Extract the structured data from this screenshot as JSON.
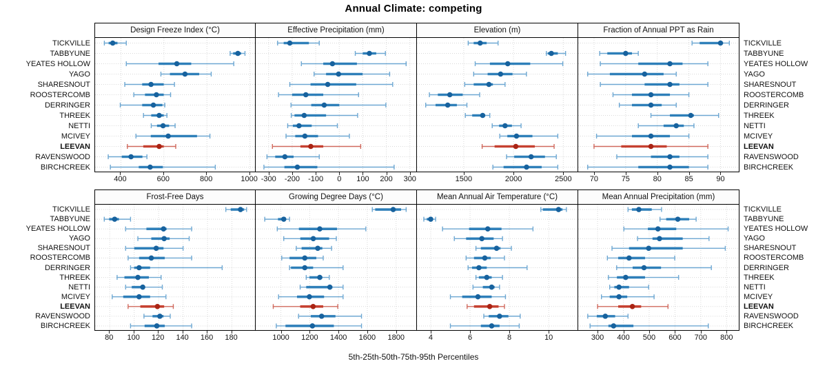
{
  "title": "Annual Climate: competing",
  "caption": "5th-25th-50th-75th-95th Percentiles",
  "highlight": "LEEVAN",
  "locations": [
    "TICKVILLE",
    "TABBYUNE",
    "YEATES HOLLOW",
    "YAGO",
    "SHARESNOUT",
    "ROOSTERCOMB",
    "DERRINGER",
    "THREEK",
    "NETTI",
    "MCIVEY",
    "LEEVAN",
    "RAVENSWOOD",
    "BIRCHCREEK"
  ],
  "colors": {
    "blue_line": "#6da7d2",
    "blue_bar": "#2478b5",
    "blue_dot": "#17629e",
    "red_line": "#d0695d",
    "red_bar": "#c33a28",
    "red_dot": "#aa2414",
    "grid": "#d8d8d8",
    "border": "#000000",
    "strip_bg": "#fcfcfc"
  },
  "chart_data": {
    "type": "dotplot-whisker-trellis",
    "percentiles": [
      5,
      25,
      50,
      75,
      95
    ],
    "layout": "2 rows x 4 columns, shared row categories, gridlines dotted, row labels on both sides",
    "panels": [
      {
        "label": "Design Freeze Index (°C)",
        "ticks": [
          400,
          600,
          800,
          1000
        ],
        "domain": [
          280,
          1030
        ],
        "values": {
          "TICKVILLE": [
            323,
            343,
            362,
            384,
            425
          ],
          "TABBYUNE": [
            908,
            922,
            944,
            959,
            977
          ],
          "YEATES HOLLOW": [
            425,
            575,
            660,
            727,
            925
          ],
          "YAGO": [
            586,
            628,
            698,
            764,
            820
          ],
          "SHARESNOUT": [
            418,
            499,
            540,
            599,
            649
          ],
          "ROOSTERCOMB": [
            460,
            512,
            565,
            599,
            631
          ],
          "DERRINGER": [
            397,
            499,
            551,
            593,
            604
          ],
          "THREEK": [
            505,
            541,
            578,
            599,
            614
          ],
          "NETTI": [
            541,
            568,
            596,
            624,
            652
          ],
          "MCIVEY": [
            470,
            539,
            620,
            754,
            814
          ],
          "LEEVAN": [
            430,
            504,
            578,
            599,
            655
          ],
          "RAVENSWOOD": [
            341,
            404,
            447,
            500,
            521
          ],
          "BIRCHCREEK": [
            351,
            483,
            536,
            595,
            839
          ]
        }
      },
      {
        "label": "Effective Precipitation (mm)",
        "ticks": [
          -300,
          -200,
          -100,
          0,
          100,
          200,
          300
        ],
        "domain": [
          -355,
          330
        ],
        "values": {
          "TICKVILLE": [
            -262,
            -236,
            -210,
            -129,
            -85
          ],
          "TABBYUNE": [
            68,
            100,
            128,
            157,
            196
          ],
          "YEATES HOLLOW": [
            -161,
            -68,
            -29,
            75,
            284
          ],
          "YAGO": [
            -107,
            -56,
            -3,
            99,
            214
          ],
          "SHARESNOUT": [
            -210,
            -122,
            -49,
            72,
            227
          ],
          "ROOSTERCOMB": [
            -258,
            -200,
            -142,
            -68,
            82
          ],
          "DERRINGER": [
            -205,
            -119,
            -64,
            0,
            198
          ],
          "THREEK": [
            -204,
            -190,
            -149,
            -56,
            78
          ],
          "NETTI": [
            -219,
            -197,
            -171,
            -117,
            -8
          ],
          "MCIVEY": [
            -226,
            -187,
            -146,
            -90,
            43
          ],
          "LEEVAN": [
            -284,
            -165,
            -121,
            -68,
            91
          ],
          "RAVENSWOOD": [
            -307,
            -272,
            -231,
            -194,
            -85
          ],
          "BIRCHCREEK": [
            -320,
            -233,
            -178,
            -93,
            233
          ]
        }
      },
      {
        "label": "Elevation (m)",
        "ticks": [
          1500,
          2000,
          2500
        ],
        "domain": [
          1030,
          2650
        ],
        "values": {
          "TICKVILLE": [
            1545,
            1600,
            1665,
            1730,
            1845
          ],
          "TABBYUNE": [
            2330,
            2345,
            2380,
            2445,
            2523
          ],
          "YEATES HOLLOW": [
            1615,
            1763,
            1942,
            2168,
            2495
          ],
          "YAGO": [
            1600,
            1740,
            1870,
            1990,
            2130
          ],
          "SHARESNOUT": [
            1510,
            1600,
            1753,
            1793,
            1915
          ],
          "ROOSTERCOMB": [
            1155,
            1240,
            1360,
            1490,
            1660
          ],
          "DERRINGER": [
            1118,
            1217,
            1339,
            1431,
            1532
          ],
          "THREEK": [
            1516,
            1585,
            1690,
            1716,
            1762
          ],
          "NETTI": [
            1786,
            1855,
            1915,
            1984,
            2076
          ],
          "MCIVEY": [
            1862,
            1938,
            2030,
            2190,
            2445
          ],
          "LEEVAN": [
            1685,
            1810,
            2023,
            2214,
            2408
          ],
          "RAVENSWOOD": [
            1930,
            2007,
            2177,
            2316,
            2430
          ],
          "BIRCHCREEK": [
            1793,
            1900,
            2131,
            2283,
            2445
          ]
        }
      },
      {
        "label": "Fraction of Annual PPT as Rain",
        "ticks": [
          70,
          75,
          80,
          85,
          90
        ],
        "domain": [
          67.5,
          93
        ],
        "values": {
          "TICKVILLE": [
            85.5,
            86.7,
            90,
            90.4,
            91.4
          ],
          "TABBYUNE": [
            70.9,
            72.1,
            75,
            76,
            77
          ],
          "YEATES HOLLOW": [
            71,
            77,
            82,
            84,
            88
          ],
          "YAGO": [
            69,
            72.5,
            78,
            81,
            83
          ],
          "SHARESNOUT": [
            71,
            78,
            82,
            83.5,
            88
          ],
          "ROOSTERCOMB": [
            73,
            76,
            79,
            82,
            85
          ],
          "DERRINGER": [
            74,
            76,
            79,
            80.7,
            83
          ],
          "THREEK": [
            79,
            82,
            85.3,
            85.8,
            89.7
          ],
          "NETTI": [
            77,
            81,
            83,
            84.2,
            85.8
          ],
          "MCIVEY": [
            70.4,
            76,
            79,
            82,
            85
          ],
          "LEEVAN": [
            70,
            74.3,
            79,
            81.5,
            88
          ],
          "RAVENSWOOD": [
            73.6,
            79,
            82,
            83.5,
            88
          ],
          "BIRCHCREEK": [
            69,
            77,
            82,
            85,
            88
          ]
        }
      },
      {
        "label": "Frost-Free Days",
        "ticks": [
          80,
          100,
          120,
          140,
          160,
          180
        ],
        "domain": [
          68,
          200
        ],
        "values": {
          "TICKVILLE": [
            175,
            179,
            187,
            190,
            192
          ],
          "TABBYUNE": [
            75.5,
            79.5,
            84,
            87.5,
            97
          ],
          "YEATES HOLLOW": [
            93,
            110,
            124,
            126.5,
            147
          ],
          "YAGO": [
            103,
            114,
            124.5,
            129,
            145
          ],
          "SHARESNOUT": [
            93,
            100,
            118,
            124,
            140
          ],
          "ROOSTERCOMB": [
            95,
            104,
            114,
            125,
            147
          ],
          "DERRINGER": [
            97,
            100,
            104,
            113,
            172
          ],
          "THREEK": [
            86,
            92,
            103,
            112,
            122
          ],
          "NETTI": [
            93,
            98,
            107,
            108.5,
            123
          ],
          "MCIVEY": [
            82,
            91,
            104,
            113,
            126
          ],
          "LEEVAN": [
            95,
            105,
            119,
            124.5,
            132
          ],
          "RAVENSWOOD": [
            108,
            115,
            121,
            124,
            129.5
          ],
          "BIRCHCREEK": [
            97,
            108.5,
            118.5,
            125,
            147
          ]
        }
      },
      {
        "label": "Growing Degree Days (°C)",
        "ticks": [
          1000,
          1200,
          1400,
          1600,
          1800
        ],
        "domain": [
          825,
          1945
        ],
        "values": {
          "TICKVILLE": [
            1635,
            1655,
            1780,
            1835,
            1870
          ],
          "TABBYUNE": [
            888,
            980,
            1020,
            1032,
            1060
          ],
          "YEATES HOLLOW": [
            975,
            1125,
            1270,
            1390,
            1590
          ],
          "YAGO": [
            1020,
            1135,
            1225,
            1335,
            1385
          ],
          "SHARESNOUT": [
            1107,
            1144,
            1256,
            1288,
            1352
          ],
          "ROOSTERCOMB": [
            1006,
            1060,
            1166,
            1246,
            1294
          ],
          "DERRINGER": [
            1060,
            1070,
            1166,
            1224,
            1432
          ],
          "THREEK": [
            1176,
            1198,
            1270,
            1288,
            1336
          ],
          "NETTI": [
            1134,
            1176,
            1340,
            1358,
            1432
          ],
          "MCIVEY": [
            984,
            1112,
            1198,
            1300,
            1432
          ],
          "LEEVAN": [
            947,
            1134,
            1224,
            1294,
            1395
          ],
          "RAVENSWOOD": [
            1123,
            1208,
            1283,
            1379,
            1560
          ],
          "BIRCHCREEK": [
            968,
            1032,
            1219,
            1368,
            1560
          ]
        }
      },
      {
        "label": "Mean Annual Air Temperature (°C)",
        "ticks": [
          4,
          6,
          8,
          10
        ],
        "domain": [
          3.3,
          11.5
        ],
        "values": {
          "TICKVILLE": [
            9.6,
            9.7,
            10.5,
            10.7,
            10.9
          ],
          "TABBYUNE": [
            3.65,
            3.8,
            4,
            4.1,
            4.25
          ],
          "YEATES HOLLOW": [
            4.6,
            5.95,
            6.9,
            7.6,
            9.2
          ],
          "YAGO": [
            5.2,
            5.8,
            6.6,
            7.2,
            7.65
          ],
          "SHARESNOUT": [
            6.3,
            6.55,
            7.35,
            7.55,
            8.1
          ],
          "ROOSTERCOMB": [
            5.8,
            6.2,
            6.75,
            7.05,
            7.75
          ],
          "DERRINGER": [
            5.9,
            6.1,
            6.45,
            6.85,
            8.9
          ],
          "THREEK": [
            6.3,
            6.45,
            6.85,
            7.1,
            7.65
          ],
          "NETTI": [
            6.15,
            6.65,
            7.1,
            7.25,
            7.5
          ],
          "MCIVEY": [
            5,
            5.6,
            6.4,
            7.1,
            7.8
          ],
          "LEEVAN": [
            5.85,
            6.2,
            7,
            7.45,
            7.75
          ],
          "RAVENSWOOD": [
            6.7,
            6.95,
            7.5,
            7.95,
            8.55
          ],
          "BIRCHCREEK": [
            5,
            6.55,
            7.1,
            7.5,
            8.5
          ]
        }
      },
      {
        "label": "Mean Annual Precipitation (mm)",
        "ticks": [
          300,
          400,
          500,
          600,
          700,
          800
        ],
        "domain": [
          225,
          850
        ],
        "values": {
          "TICKVILLE": [
            418,
            433,
            460,
            510,
            548
          ],
          "TABBYUNE": [
            542,
            566,
            611,
            655,
            682
          ],
          "YEATES HOLLOW": [
            402,
            495,
            534,
            605,
            806
          ],
          "YAGO": [
            455,
            513,
            540,
            630,
            732
          ],
          "SHARESNOUT": [
            356,
            422,
            498,
            630,
            795
          ],
          "ROOSTERCOMB": [
            338,
            380,
            422,
            484,
            599
          ],
          "DERRINGER": [
            374,
            436,
            480,
            546,
            741
          ],
          "THREEK": [
            342,
            375,
            409,
            484,
            614
          ],
          "NETTI": [
            347,
            365,
            383,
            422,
            498
          ],
          "MCIVEY": [
            315,
            347,
            383,
            415,
            519
          ],
          "LEEVAN": [
            300,
            380,
            435,
            469,
            573
          ],
          "RAVENSWOOD": [
            262,
            297,
            330,
            368,
            418
          ],
          "BIRCHCREEK": [
            271,
            342,
            362,
            439,
            729
          ]
        }
      }
    ]
  }
}
